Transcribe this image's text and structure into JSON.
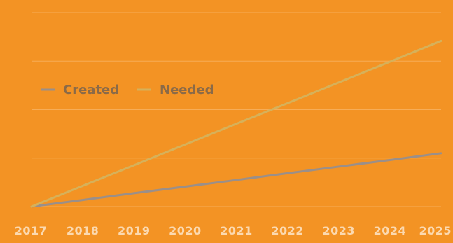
{
  "colors": {
    "background": "#f39324",
    "grid": "#f7ad57",
    "created": "#9a8f8a",
    "needed": "#d6b15a",
    "tick_text": "#fbd9b0",
    "legend_text": "#8a6a48"
  },
  "chart_data": {
    "type": "line",
    "title": "",
    "xlabel": "",
    "ylabel": "",
    "x": [
      "2017",
      "2018",
      "2019",
      "2020",
      "2021",
      "2022",
      "2023",
      "2024",
      "2025"
    ],
    "ylim": [
      0,
      100
    ],
    "grid": true,
    "legend_placement": "top-left",
    "series": [
      {
        "name": "Created",
        "color": "#9a8f8a",
        "values": [
          0,
          3.4,
          6.9,
          10.3,
          13.7,
          17.2,
          20.6,
          24.0,
          27.5
        ]
      },
      {
        "name": "Needed",
        "color": "#d6b15a",
        "values": [
          0,
          10.7,
          21.3,
          32.0,
          42.7,
          53.3,
          64.0,
          74.7,
          85.4
        ]
      }
    ]
  }
}
